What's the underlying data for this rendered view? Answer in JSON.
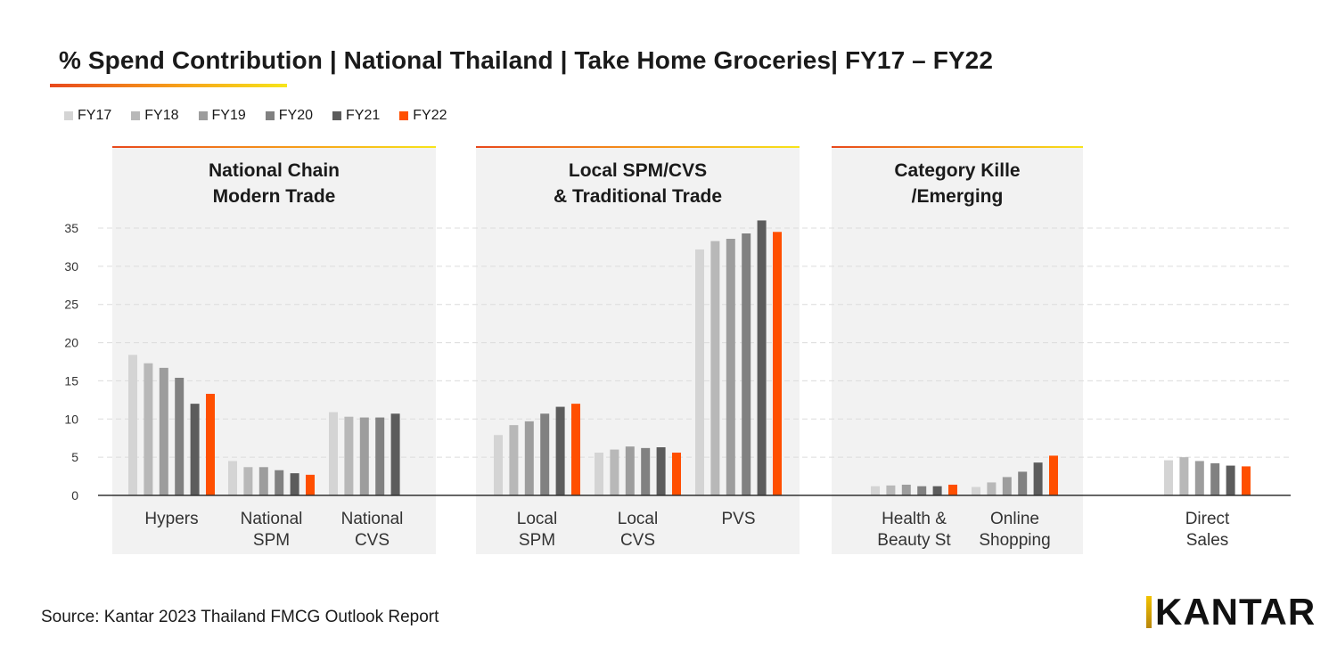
{
  "page": {
    "title": "% Spend Contribution | National Thailand | Take Home Groceries| FY17 – FY22",
    "source": "Source: Kantar 2023 Thailand FMCG Outlook Report",
    "logo_text": "KANTAR"
  },
  "chart_data": {
    "type": "bar",
    "title": "% Spend Contribution | National Thailand | Take Home Groceries| FY17 – FY22",
    "xlabel": "",
    "ylabel": "",
    "ylim": [
      0,
      35
    ],
    "yticks": [
      0,
      5,
      10,
      15,
      20,
      25,
      30,
      35
    ],
    "grid": true,
    "legend_position": "top-left",
    "colors": [
      "#d4d4d4",
      "#b8b8b8",
      "#9d9d9d",
      "#818181",
      "#5c5c5c",
      "#ff4f00"
    ],
    "groups": [
      {
        "label": "National Chain\nModern Trade",
        "categories": [
          0,
          1,
          2
        ]
      },
      {
        "label": "Local SPM/CVS\n& Traditional Trade",
        "categories": [
          3,
          4,
          5
        ]
      },
      {
        "label": "Category Kille\n/Emerging",
        "categories": [
          6,
          7
        ]
      }
    ],
    "categories": [
      "Hypers",
      "National\nSPM",
      "National\nCVS",
      "Local\nSPM",
      "Local\nCVS",
      "PVS",
      "Health &\nBeauty St",
      "Online\nShopping",
      "Direct\nSales"
    ],
    "series": [
      {
        "name": "FY17",
        "values": [
          18.4,
          4.5,
          10.9,
          7.9,
          5.6,
          32.2,
          1.2,
          1.1,
          4.6
        ]
      },
      {
        "name": "FY18",
        "values": [
          17.3,
          3.7,
          10.3,
          9.2,
          6.0,
          33.3,
          1.3,
          1.7,
          5.0
        ]
      },
      {
        "name": "FY19",
        "values": [
          16.7,
          3.7,
          10.2,
          9.7,
          6.4,
          33.6,
          1.4,
          2.4,
          4.5
        ]
      },
      {
        "name": "FY20",
        "values": [
          15.4,
          3.3,
          10.2,
          10.7,
          6.2,
          34.3,
          1.2,
          3.1,
          4.2
        ]
      },
      {
        "name": "FY21",
        "values": [
          12.0,
          2.9,
          10.7,
          11.6,
          6.3,
          36.0,
          1.2,
          4.3,
          3.9
        ]
      },
      {
        "name": "FY22",
        "values": [
          13.3,
          2.7,
          null,
          12.0,
          5.6,
          34.5,
          1.4,
          5.2,
          3.8
        ]
      }
    ]
  }
}
